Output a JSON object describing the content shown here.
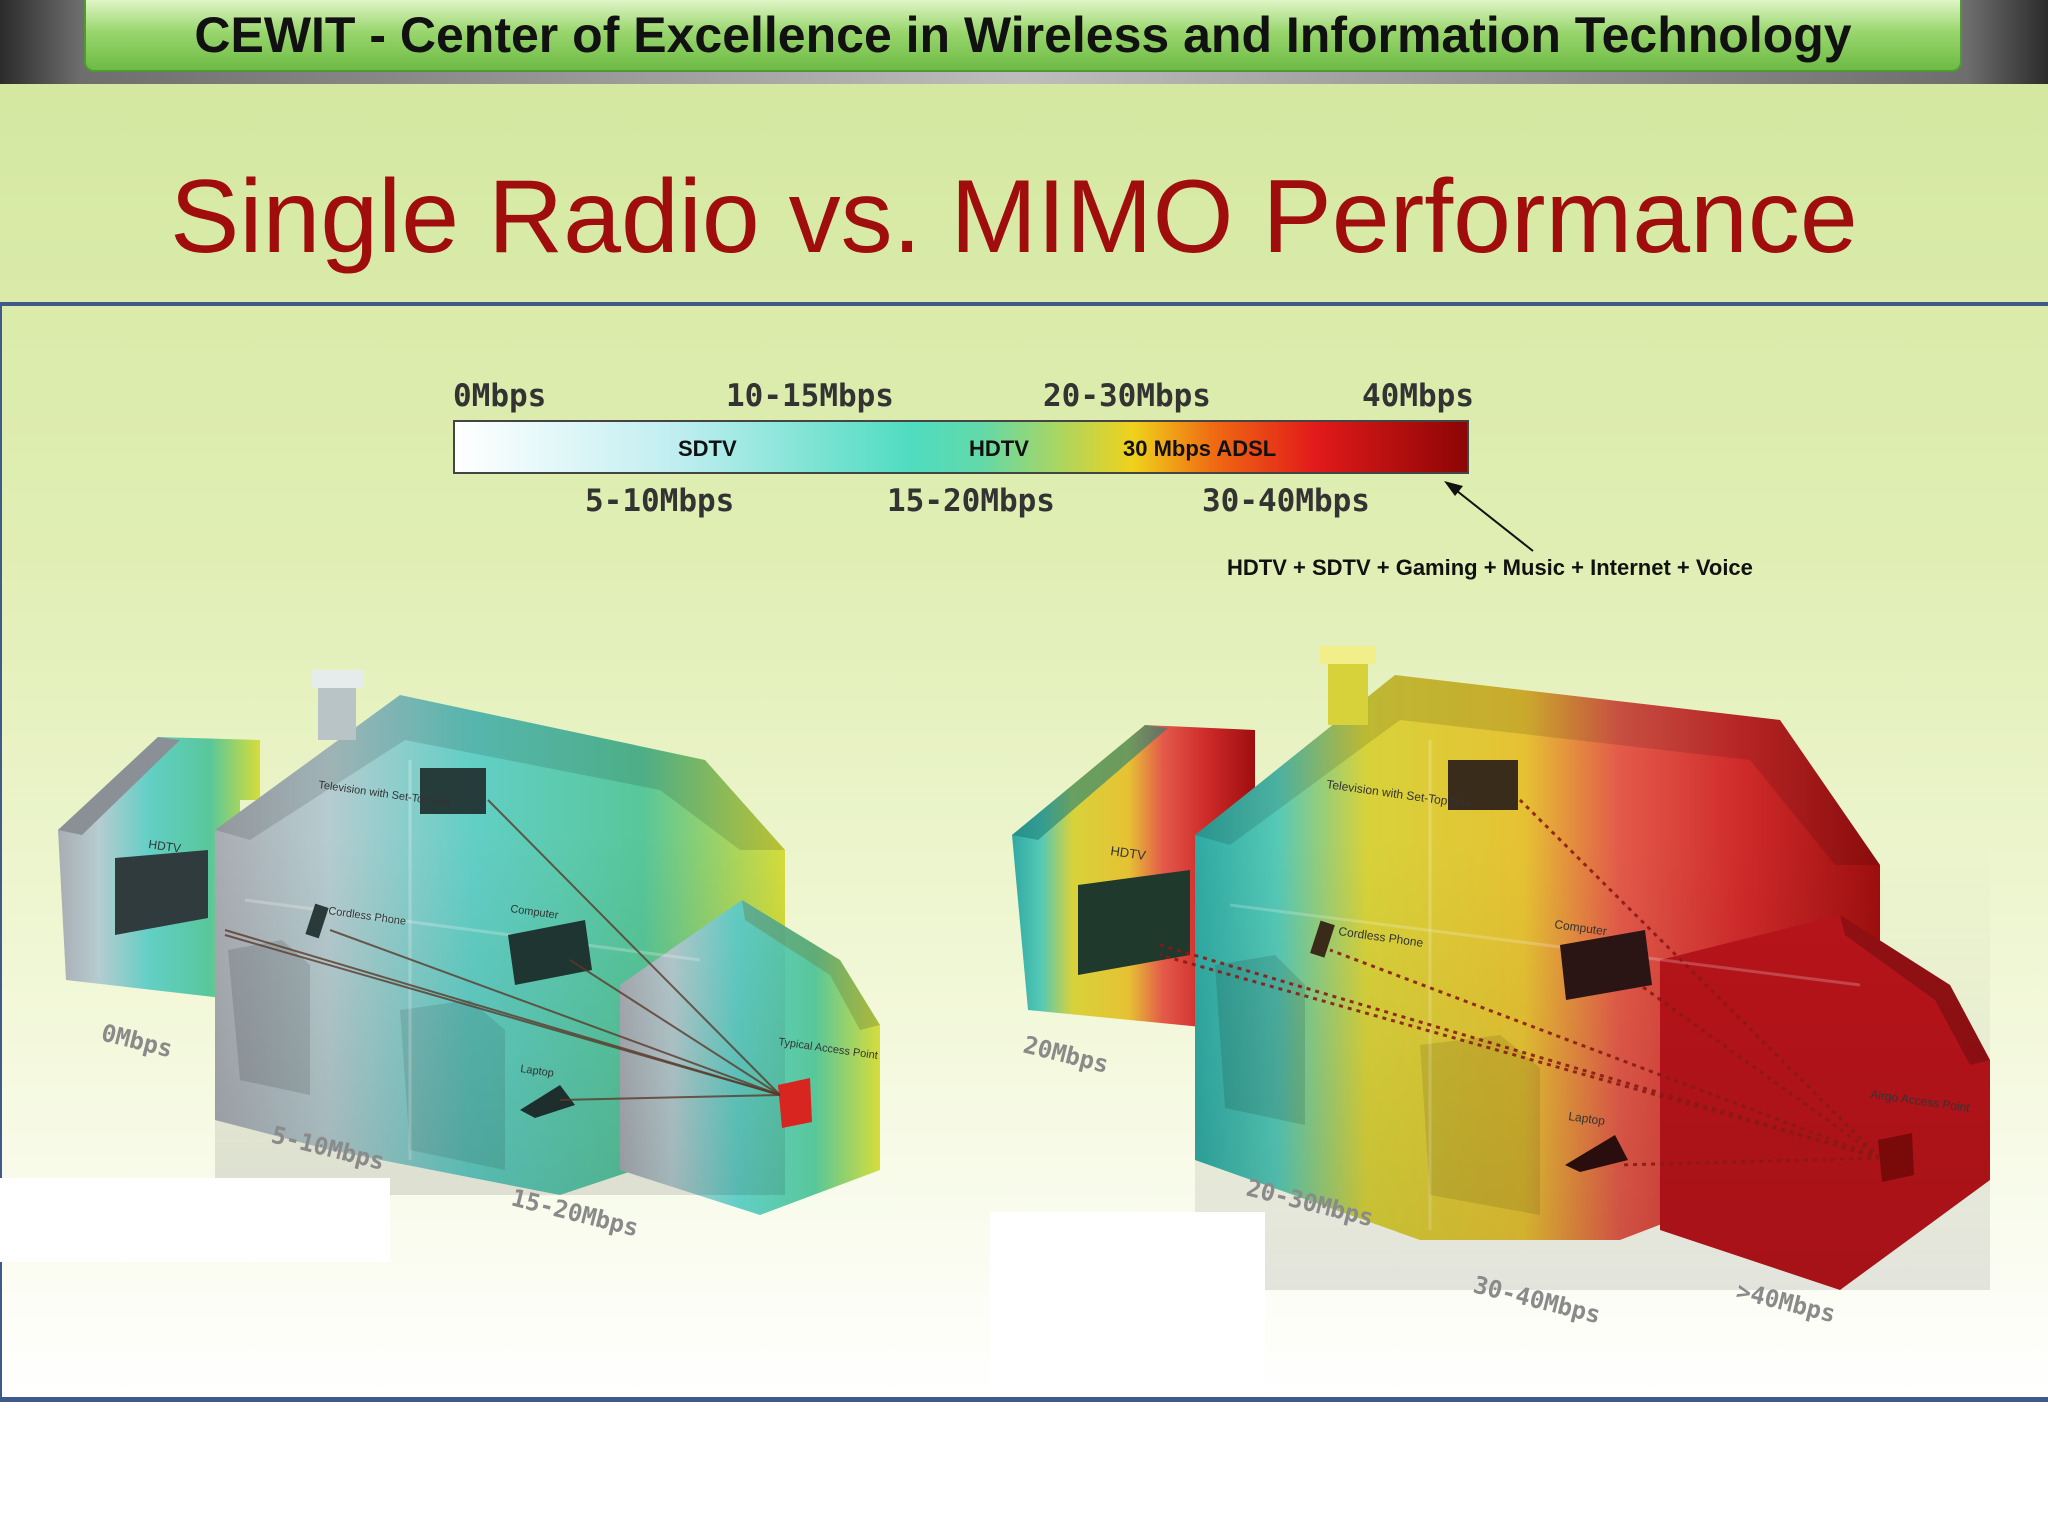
{
  "header": {
    "banner_text": "CEWIT - Center of Excellence in Wireless and Information Technology"
  },
  "slide": {
    "title": "Single Radio vs. MIMO Performance"
  },
  "scale": {
    "top_labels": [
      "0Mbps",
      "10-15Mbps",
      "20-30Mbps",
      "40Mbps"
    ],
    "bottom_labels": [
      "5-10Mbps",
      "15-20Mbps",
      "30-40Mbps"
    ],
    "bar_labels": [
      "SDTV",
      "HDTV",
      "30 Mbps ADSL"
    ],
    "annotation": "HDTV + SDTV + Gaming + Music + Internet + Voice",
    "colors": [
      "#ffffff",
      "#4fdcc0",
      "#f0d21c",
      "#e21a1a",
      "#8c0505"
    ]
  },
  "single_radio_house": {
    "zone_labels": [
      "0Mbps",
      "5-10Mbps",
      "15-20Mbps"
    ],
    "device_labels": [
      "HDTV",
      "Television with Set-Top Box",
      "Cordless Phone",
      "Computer",
      "Laptop",
      "Typical Access Point"
    ]
  },
  "mimo_house": {
    "zone_labels": [
      "20Mbps",
      "20-30Mbps",
      "30-40Mbps",
      ">40Mbps"
    ],
    "device_labels": [
      "HDTV",
      "Television with Set-Top Box",
      "Cordless Phone",
      "Computer",
      "Laptop",
      "Airgo Access Point"
    ]
  }
}
